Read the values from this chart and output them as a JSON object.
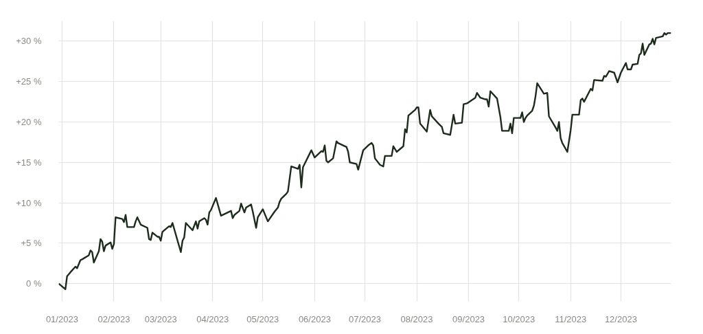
{
  "chart_data": {
    "type": "line",
    "xlim": [
      "2022-12-30",
      "2023-12-31"
    ],
    "xticks": [
      {
        "value": "2023-01-01",
        "label": "01/2023"
      },
      {
        "value": "2023-02-01",
        "label": "02/2023"
      },
      {
        "value": "2023-03-01",
        "label": "03/2023"
      },
      {
        "value": "2023-04-01",
        "label": "04/2023"
      },
      {
        "value": "2023-05-01",
        "label": "05/2023"
      },
      {
        "value": "2023-06-01",
        "label": "06/2023"
      },
      {
        "value": "2023-07-01",
        "label": "07/2023"
      },
      {
        "value": "2023-08-01",
        "label": "08/2023"
      },
      {
        "value": "2023-09-01",
        "label": "09/2023"
      },
      {
        "value": "2023-10-01",
        "label": "10/2023"
      },
      {
        "value": "2023-11-01",
        "label": "11/2023"
      },
      {
        "value": "2023-12-01",
        "label": "12/2023"
      }
    ],
    "ylim": [
      -2.2,
      32.5
    ],
    "yticks": [
      {
        "value": 0,
        "label": "0 %"
      },
      {
        "value": 5,
        "label": "+5 %"
      },
      {
        "value": 10,
        "label": "+10 %"
      },
      {
        "value": 15,
        "label": "+15 %"
      },
      {
        "value": 20,
        "label": "+20 %"
      },
      {
        "value": 25,
        "label": "+25 %"
      },
      {
        "value": 30,
        "label": "+30 %"
      }
    ],
    "grid": true,
    "series": [
      {
        "color": "#1c2b1b",
        "x": [
          "2022-12-30",
          "2023-01-03",
          "2023-01-04",
          "2023-01-06",
          "2023-01-09",
          "2023-01-10",
          "2023-01-12",
          "2023-01-13",
          "2023-01-17",
          "2023-01-18",
          "2023-01-19",
          "2023-01-20",
          "2023-01-23",
          "2023-01-24",
          "2023-01-25",
          "2023-01-26",
          "2023-01-27",
          "2023-01-30",
          "2023-01-31",
          "2023-02-01",
          "2023-02-02",
          "2023-02-06",
          "2023-02-07",
          "2023-02-08",
          "2023-02-09",
          "2023-02-13",
          "2023-02-14",
          "2023-02-15",
          "2023-02-17",
          "2023-02-21",
          "2023-02-22",
          "2023-02-23",
          "2023-02-24",
          "2023-02-27",
          "2023-02-28",
          "2023-03-01",
          "2023-03-02",
          "2023-03-06",
          "2023-03-07",
          "2023-03-08",
          "2023-03-13",
          "2023-03-14",
          "2023-03-15",
          "2023-03-16",
          "2023-03-20",
          "2023-03-22",
          "2023-03-23",
          "2023-03-24",
          "2023-03-27",
          "2023-03-28",
          "2023-03-29",
          "2023-03-30",
          "2023-03-31",
          "2023-04-03",
          "2023-04-06",
          "2023-04-12",
          "2023-04-13",
          "2023-04-14",
          "2023-04-17",
          "2023-04-18",
          "2023-04-20",
          "2023-04-21",
          "2023-04-24",
          "2023-04-25",
          "2023-04-27",
          "2023-04-28",
          "2023-05-01",
          "2023-05-04",
          "2023-05-08",
          "2023-05-10",
          "2023-05-11",
          "2023-05-12",
          "2023-05-15",
          "2023-05-16",
          "2023-05-18",
          "2023-05-22",
          "2023-05-23",
          "2023-05-24",
          "2023-05-25",
          "2023-05-30",
          "2023-06-01",
          "2023-06-05",
          "2023-06-06",
          "2023-06-07",
          "2023-06-08",
          "2023-06-09",
          "2023-06-12",
          "2023-06-14",
          "2023-06-15",
          "2023-06-20",
          "2023-06-21",
          "2023-06-22",
          "2023-06-26",
          "2023-06-27",
          "2023-06-30",
          "2023-07-03",
          "2023-07-05",
          "2023-07-06",
          "2023-07-07",
          "2023-07-10",
          "2023-07-11",
          "2023-07-12",
          "2023-07-13",
          "2023-07-17",
          "2023-07-18",
          "2023-07-20",
          "2023-07-24",
          "2023-07-25",
          "2023-07-26",
          "2023-07-27",
          "2023-07-31",
          "2023-08-01",
          "2023-08-02",
          "2023-08-03",
          "2023-08-07",
          "2023-08-09",
          "2023-08-10",
          "2023-08-14",
          "2023-08-16",
          "2023-08-17",
          "2023-08-21",
          "2023-08-23",
          "2023-08-24",
          "2023-08-28",
          "2023-08-29",
          "2023-08-31",
          "2023-09-05",
          "2023-09-06",
          "2023-09-08",
          "2023-09-11",
          "2023-09-12",
          "2023-09-13",
          "2023-09-14",
          "2023-09-18",
          "2023-09-20",
          "2023-09-21",
          "2023-09-25",
          "2023-09-26",
          "2023-09-27",
          "2023-09-28",
          "2023-10-02",
          "2023-10-03",
          "2023-10-04",
          "2023-10-05",
          "2023-10-06",
          "2023-10-09",
          "2023-10-10",
          "2023-10-11",
          "2023-10-12",
          "2023-10-16",
          "2023-10-18",
          "2023-10-19",
          "2023-10-23",
          "2023-10-24",
          "2023-10-25",
          "2023-10-26",
          "2023-10-27",
          "2023-10-30",
          "2023-11-01",
          "2023-11-02",
          "2023-11-06",
          "2023-11-07",
          "2023-11-08",
          "2023-11-09",
          "2023-11-13",
          "2023-11-14",
          "2023-11-15",
          "2023-11-20",
          "2023-11-21",
          "2023-11-22",
          "2023-11-24",
          "2023-11-27",
          "2023-11-29",
          "2023-12-01",
          "2023-12-04",
          "2023-12-05",
          "2023-12-07",
          "2023-12-08",
          "2023-12-11",
          "2023-12-12",
          "2023-12-13",
          "2023-12-14",
          "2023-12-15",
          "2023-12-18",
          "2023-12-19",
          "2023-12-20",
          "2023-12-21",
          "2023-12-22",
          "2023-12-26",
          "2023-12-27",
          "2023-12-28",
          "2023-12-29",
          "2023-12-31"
        ],
        "values": [
          0,
          -0.7,
          0.9,
          1.4,
          2.1,
          1.9,
          2.9,
          3.0,
          3.5,
          4.1,
          3.9,
          2.6,
          4.0,
          5.5,
          5.2,
          4.0,
          4.7,
          5.1,
          4.3,
          4.9,
          8.2,
          8.0,
          7.6,
          8.5,
          7.0,
          7.0,
          7.7,
          8.2,
          7.3,
          6.9,
          5.5,
          5.4,
          6.3,
          5.8,
          5.8,
          5.3,
          6.4,
          7.1,
          7.0,
          7.5,
          3.9,
          5.3,
          5.7,
          7.5,
          6.6,
          7.7,
          6.8,
          7.7,
          8.1,
          7.9,
          7.3,
          8.8,
          9.1,
          10.6,
          8.4,
          9.0,
          8.1,
          8.5,
          9.0,
          9.9,
          8.8,
          9.4,
          9.8,
          8.9,
          6.9,
          8.2,
          9.2,
          7.7,
          8.9,
          9.4,
          10.1,
          10.5,
          11.1,
          11.4,
          14.5,
          14.2,
          14.7,
          11.9,
          14.4,
          16.5,
          15.6,
          16.4,
          16.3,
          17.1,
          15.2,
          15.0,
          15.5,
          17.6,
          17.4,
          16.9,
          16.3,
          15.0,
          14.8,
          14.1,
          16.5,
          17.1,
          17.4,
          17.1,
          15.5,
          14.7,
          14.6,
          14.5,
          15.8,
          15.8,
          17.0,
          16.3,
          17.0,
          19.1,
          18.7,
          20.8,
          21.5,
          21.8,
          21.8,
          19.8,
          18.8,
          21.5,
          20.7,
          19.8,
          19.4,
          18.6,
          18.4,
          20.9,
          19.8,
          19.9,
          22.2,
          22.3,
          23.0,
          23.6,
          23.0,
          22.8,
          22.8,
          21.9,
          23.8,
          22.9,
          20.6,
          18.9,
          18.9,
          19.8,
          18.6,
          20.5,
          20.5,
          21.2,
          20.0,
          20.5,
          20.8,
          21.4,
          22.0,
          23.2,
          24.8,
          23.5,
          23.6,
          20.7,
          19.3,
          18.9,
          20.0,
          18.0,
          17.4,
          16.3,
          19.0,
          20.9,
          20.9,
          22.7,
          22.9,
          22.5,
          24.1,
          23.9,
          25.2,
          25.1,
          25.7,
          25.6,
          26.3,
          26.1,
          24.9,
          26.1,
          27.3,
          26.5,
          26.5,
          27.1,
          27.2,
          28.3,
          28.5,
          29.7,
          28.3,
          29.6,
          29.7,
          30.3,
          29.6,
          30.4,
          30.6,
          31.0,
          30.8,
          31.0,
          31.0
        ]
      }
    ]
  }
}
